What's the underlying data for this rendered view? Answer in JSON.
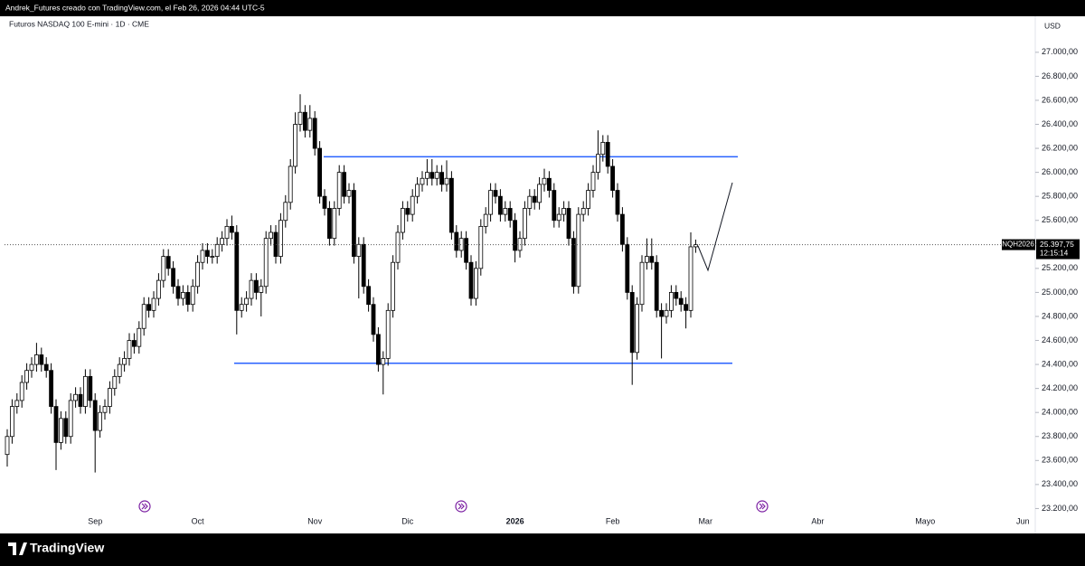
{
  "header": "Andrek_Futures creado con TradingView.com, el Feb 26, 2026 04:44 UTC-5",
  "footer": "TradingView",
  "chart_data": {
    "type": "candlestick",
    "title": "Futuros NASDAQ 100 E-mini · 1D · CME",
    "y_axis_label": "USD",
    "symbol": "NQH2026",
    "last_price_label": "25.397,75",
    "countdown": "12:15:14",
    "up_color": "#ffffff",
    "down_color": "#000000",
    "ylim": [
      23030,
      27300
    ],
    "yticks": [
      {
        "value": 23200,
        "label": "23.200,00"
      },
      {
        "value": 23400,
        "label": "23.400,00"
      },
      {
        "value": 23600,
        "label": "23.600,00"
      },
      {
        "value": 23800,
        "label": "23.800,00"
      },
      {
        "value": 24000,
        "label": "24.000,00"
      },
      {
        "value": 24200,
        "label": "24.200,00"
      },
      {
        "value": 24400,
        "label": "24.400,00"
      },
      {
        "value": 24600,
        "label": "24.600,00"
      },
      {
        "value": 24800,
        "label": "24.800,00"
      },
      {
        "value": 25000,
        "label": "25.000,00"
      },
      {
        "value": 25200,
        "label": "25.200,00"
      },
      {
        "value": 25400,
        "label": "25.400,00"
      },
      {
        "value": 25600,
        "label": "25.600,00"
      },
      {
        "value": 25800,
        "label": "25.800,00"
      },
      {
        "value": 26000,
        "label": "26.000,00"
      },
      {
        "value": 26200,
        "label": "26.200,00"
      },
      {
        "value": 26400,
        "label": "26.400,00"
      },
      {
        "value": 26600,
        "label": "26.600,00"
      },
      {
        "value": 26800,
        "label": "26.800,00"
      },
      {
        "value": 27000,
        "label": "27.000,00"
      }
    ],
    "levels": [
      {
        "value": 26130,
        "color": "#2962ff"
      },
      {
        "value": 24410,
        "color": "#2962ff"
      }
    ],
    "categories": [
      null,
      null,
      null,
      null,
      null,
      null,
      null,
      null,
      null,
      null,
      null,
      null,
      null,
      null,
      null,
      null,
      null,
      null,
      "Sep",
      null,
      null,
      null,
      null,
      null,
      null,
      null,
      null,
      null,
      null,
      null,
      null,
      null,
      null,
      null,
      null,
      null,
      null,
      null,
      null,
      "Oct",
      null,
      null,
      null,
      null,
      null,
      null,
      null,
      null,
      null,
      null,
      null,
      null,
      null,
      null,
      null,
      null,
      null,
      null,
      null,
      null,
      null,
      null,
      null,
      "Nov",
      null,
      null,
      null,
      null,
      null,
      null,
      null,
      null,
      null,
      null,
      null,
      null,
      null,
      null,
      null,
      null,
      null,
      null,
      "Dic",
      null,
      null,
      null,
      null,
      null,
      null,
      null,
      null,
      null,
      null,
      null,
      null,
      null,
      null,
      null,
      null,
      null,
      null,
      null,
      null,
      null,
      "2026",
      null,
      null,
      null,
      null,
      null,
      null,
      null,
      null,
      null,
      null,
      null,
      null,
      null,
      null,
      null,
      null,
      null,
      null,
      null,
      "Feb",
      null,
      null,
      null,
      null,
      null,
      null,
      null,
      null,
      null,
      null,
      null,
      null,
      null,
      null,
      null,
      null,
      null,
      null,
      "Mar",
      null,
      null,
      null,
      null,
      null,
      null,
      null,
      null,
      null,
      null,
      null,
      null,
      null,
      null,
      null,
      null,
      null,
      null,
      null,
      null,
      null,
      null,
      "Abr",
      null,
      null,
      null,
      null,
      null,
      null,
      null,
      null,
      null,
      null,
      null,
      null,
      null,
      null,
      null,
      null,
      null,
      null,
      null,
      null,
      null,
      "Mayo",
      null,
      null,
      null,
      null,
      null,
      null,
      null,
      null,
      null,
      null,
      null,
      null,
      null,
      null,
      null,
      null,
      null,
      null,
      null,
      "Jun",
      null,
      null
    ],
    "open": [
      23650,
      23800,
      24050,
      24100,
      24250,
      24350,
      24400,
      24480,
      24400,
      24350,
      24050,
      23750,
      23950,
      23800,
      24100,
      24150,
      24050,
      24300,
      24100,
      23850,
      24000,
      24050,
      24200,
      24300,
      24400,
      24450,
      24600,
      24550,
      24700,
      24900,
      24850,
      24950,
      25100,
      25300,
      25200,
      25050,
      24950,
      25000,
      24900,
      25050,
      25250,
      25350,
      25300,
      25300,
      25400,
      25450,
      25550,
      25500,
      24850,
      24900,
      24950,
      25100,
      25000,
      25050,
      25450,
      25500,
      25300,
      25600,
      25750,
      26050,
      26400,
      26500,
      26350,
      26450,
      26200,
      25800,
      25700,
      25450,
      25700,
      26000,
      25800,
      25850,
      25300,
      25400,
      25050,
      24900,
      24650,
      24400,
      24450,
      24850,
      25250,
      25500,
      25700,
      25650,
      25800,
      25900,
      25950,
      26000,
      25950,
      26000,
      25900,
      25950,
      25500,
      25350,
      25450,
      25250,
      24950,
      25200,
      25550,
      25650,
      25850,
      25800,
      25650,
      25700,
      25600,
      25350,
      25450,
      25700,
      25800,
      25750,
      25900,
      25950,
      25850,
      25600,
      25650,
      25700,
      25450,
      25050,
      25650,
      25700,
      25850,
      26000,
      26150,
      26250,
      26050,
      25850,
      25650,
      25400,
      25000,
      24500,
      24900,
      25250,
      25300,
      25250,
      24850,
      24800,
      24850,
      25000,
      24950,
      24900,
      24850,
      25380,
      null,
      null,
      null,
      null,
      null,
      null,
      null,
      null,
      null,
      null,
      null,
      null,
      null,
      null,
      null,
      null,
      null,
      null,
      null,
      null,
      null,
      null,
      null,
      null,
      null,
      null,
      null,
      null,
      null,
      null,
      null,
      null,
      null,
      null,
      null,
      null,
      null,
      null,
      null,
      null,
      null,
      null,
      null,
      null,
      null,
      null,
      null,
      null,
      null,
      null,
      null,
      null,
      null,
      null,
      null,
      null,
      null,
      null,
      null,
      null,
      null,
      null,
      null,
      null,
      null,
      null,
      null,
      null,
      null
    ],
    "high": [
      23860,
      24110,
      24160,
      24310,
      24410,
      24460,
      24580,
      24540,
      24460,
      24410,
      24110,
      24010,
      24010,
      24160,
      24210,
      24210,
      24360,
      24360,
      24160,
      24060,
      24110,
      24260,
      24360,
      24460,
      24510,
      24660,
      24660,
      24760,
      24960,
      24960,
      25010,
      25160,
      25360,
      25360,
      25260,
      25110,
      25060,
      25060,
      25110,
      25310,
      25410,
      25410,
      25360,
      25460,
      25510,
      25610,
      25640,
      25560,
      24960,
      25010,
      25160,
      25160,
      25110,
      25510,
      25560,
      25560,
      25660,
      25810,
      26110,
      26500,
      26650,
      26560,
      26560,
      26510,
      26260,
      25860,
      25760,
      25760,
      26060,
      26060,
      25910,
      25910,
      25460,
      25460,
      25110,
      24960,
      24710,
      24510,
      24910,
      25310,
      25560,
      25760,
      25760,
      25860,
      25960,
      26010,
      26110,
      26110,
      26060,
      26060,
      26100,
      26010,
      25560,
      25510,
      25510,
      25310,
      25260,
      25610,
      25710,
      25910,
      25910,
      25860,
      25760,
      25760,
      25660,
      25510,
      25760,
      25860,
      25860,
      25960,
      26030,
      26010,
      25910,
      25710,
      25760,
      25760,
      25510,
      25710,
      25760,
      25910,
      26060,
      26350,
      26310,
      26310,
      26110,
      25910,
      25710,
      25460,
      25060,
      24960,
      25310,
      25450,
      25450,
      25310,
      24910,
      24910,
      25060,
      25060,
      25010,
      24960,
      25500,
      25440,
      null,
      null,
      null,
      null,
      null,
      null,
      null,
      null,
      null,
      null,
      null,
      null,
      null,
      null,
      null,
      null,
      null,
      null,
      null,
      null,
      null,
      null,
      null,
      null,
      null,
      null,
      null,
      null,
      null,
      null,
      null,
      null,
      null,
      null,
      null,
      null,
      null,
      null,
      null,
      null,
      null,
      null,
      null,
      null,
      null,
      null,
      null,
      null,
      null,
      null,
      null,
      null,
      null,
      null,
      null,
      null,
      null,
      null,
      null,
      null,
      null,
      null,
      null,
      null,
      null,
      null,
      null,
      null,
      null
    ],
    "low": [
      23550,
      23740,
      23990,
      24040,
      24190,
      24290,
      24340,
      24340,
      24290,
      23990,
      23520,
      23690,
      23740,
      23740,
      24040,
      23990,
      23990,
      24040,
      23500,
      23790,
      23940,
      23990,
      24140,
      24240,
      24340,
      24390,
      24490,
      24490,
      24640,
      24790,
      24790,
      24890,
      25040,
      25140,
      24990,
      24890,
      24890,
      24840,
      24840,
      24990,
      25190,
      25240,
      25240,
      25240,
      25340,
      25390,
      25440,
      24650,
      24790,
      24840,
      24890,
      24940,
      24800,
      24990,
      25390,
      25240,
      25240,
      25540,
      25690,
      25990,
      26340,
      26290,
      26290,
      26140,
      25740,
      25640,
      25390,
      25390,
      25640,
      25740,
      25740,
      25240,
      24950,
      24990,
      24840,
      24590,
      24340,
      24150,
      24390,
      24790,
      25190,
      25440,
      25590,
      25590,
      25740,
      25840,
      25890,
      25890,
      25890,
      25840,
      25840,
      25440,
      25290,
      25290,
      25190,
      24890,
      24890,
      25140,
      25490,
      25590,
      25740,
      25590,
      25590,
      25540,
      25250,
      25290,
      25390,
      25640,
      25690,
      25690,
      25840,
      25790,
      25540,
      25540,
      25590,
      25390,
      24990,
      24990,
      25590,
      25640,
      25790,
      25940,
      26090,
      25990,
      25790,
      25590,
      25340,
      24940,
      24230,
      24440,
      24840,
      25190,
      25190,
      24790,
      24450,
      24740,
      24790,
      24890,
      24840,
      24700,
      24790,
      25330,
      null,
      null,
      null,
      null,
      null,
      null,
      null,
      null,
      null,
      null,
      null,
      null,
      null,
      null,
      null,
      null,
      null,
      null,
      null,
      null,
      null,
      null,
      null,
      null,
      null,
      null,
      null,
      null,
      null,
      null,
      null,
      null,
      null,
      null,
      null,
      null,
      null,
      null,
      null,
      null,
      null,
      null,
      null,
      null,
      null,
      null,
      null,
      null,
      null,
      null,
      null,
      null,
      null,
      null,
      null,
      null,
      null,
      null,
      null,
      null,
      null,
      null,
      null,
      null,
      null,
      null,
      null,
      null,
      null
    ],
    "close": [
      23800,
      24050,
      24100,
      24250,
      24350,
      24400,
      24480,
      24400,
      24350,
      24050,
      23750,
      23950,
      23800,
      24100,
      24150,
      24050,
      24300,
      24100,
      23850,
      24000,
      24050,
      24200,
      24300,
      24400,
      24450,
      24600,
      24550,
      24700,
      24900,
      24850,
      24950,
      25100,
      25300,
      25200,
      25050,
      24950,
      25000,
      24900,
      25050,
      25250,
      25350,
      25300,
      25300,
      25400,
      25450,
      25550,
      25500,
      24850,
      24900,
      24950,
      25100,
      25000,
      25050,
      25450,
      25500,
      25300,
      25600,
      25750,
      26050,
      26400,
      26500,
      26350,
      26450,
      26200,
      25800,
      25700,
      25450,
      25700,
      26000,
      25800,
      25850,
      25300,
      25400,
      25050,
      24900,
      24650,
      24400,
      24450,
      24850,
      25250,
      25500,
      25700,
      25650,
      25800,
      25900,
      25950,
      26000,
      25950,
      26000,
      25900,
      25950,
      25500,
      25350,
      25450,
      25250,
      24950,
      25200,
      25550,
      25650,
      25850,
      25800,
      25650,
      25700,
      25600,
      25350,
      25450,
      25700,
      25800,
      25750,
      25900,
      25950,
      25850,
      25600,
      25650,
      25700,
      25450,
      25050,
      25650,
      25700,
      25850,
      26000,
      26150,
      26250,
      26050,
      25850,
      25650,
      25400,
      25000,
      24500,
      24900,
      25250,
      25300,
      25250,
      24850,
      24800,
      24850,
      25000,
      24950,
      24900,
      24850,
      25380,
      25397.75,
      null,
      null,
      null,
      null,
      null,
      null,
      null,
      null,
      null,
      null,
      null,
      null,
      null,
      null,
      null,
      null,
      null,
      null,
      null,
      null,
      null,
      null,
      null,
      null,
      null,
      null,
      null,
      null,
      null,
      null,
      null,
      null,
      null,
      null,
      null,
      null,
      null,
      null,
      null,
      null,
      null,
      null,
      null,
      null,
      null,
      null,
      null,
      null,
      null,
      null,
      null,
      null,
      null,
      null,
      null,
      null,
      null,
      null,
      null,
      null,
      null,
      null,
      null,
      null,
      null,
      null,
      null,
      null,
      null
    ]
  }
}
